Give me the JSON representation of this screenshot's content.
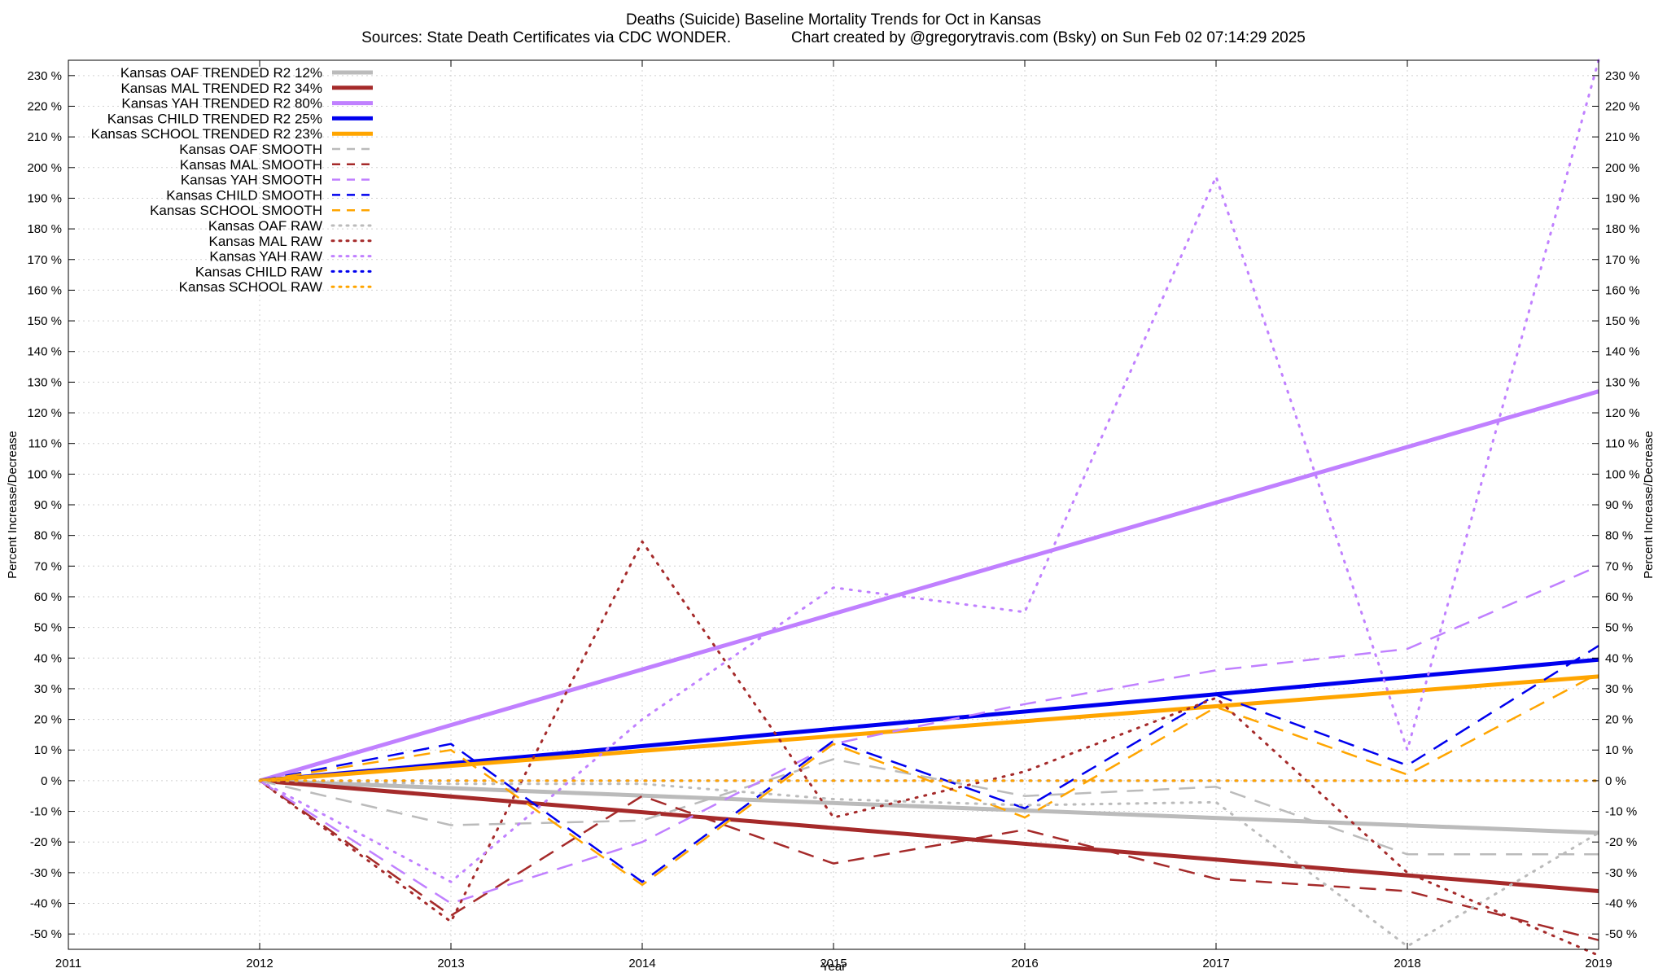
{
  "chart_data": {
    "type": "line",
    "title": "Deaths (Suicide)  Baseline Mortality Trends for Oct in Kansas",
    "subtitle": "Sources: State Death Certificates via CDC WONDER.              Chart created by @gregorytravis.com (Bsky) on Sun Feb 02 07:14:29 2025",
    "xlabel": "Year",
    "ylabel": "Percent Increase/Decrease",
    "xlim": [
      2011,
      2019
    ],
    "ylim": [
      -55,
      235
    ],
    "x_ticks": [
      "2011",
      "2012",
      "2013",
      "2014",
      "2015",
      "2016",
      "2017",
      "2018",
      "2019"
    ],
    "y_ticks": [
      "230 %",
      "220 %",
      "210 %",
      "200 %",
      "190 %",
      "180 %",
      "170 %",
      "160 %",
      "150 %",
      "140 %",
      "130 %",
      "120 %",
      "110 %",
      "100 %",
      "90 %",
      "80 %",
      "70 %",
      "60 %",
      "50 %",
      "40 %",
      "30 %",
      "20 %",
      "10 %",
      "0 %",
      "-10 %",
      "-20 %",
      "-30 %",
      "-40 %",
      "-50 %"
    ],
    "grid": true,
    "legend_position": "top-left",
    "series": [
      {
        "name": "Kansas OAF TRENDED R2  12%",
        "style": "solid",
        "color": "#bbbbbb",
        "x": [
          2012,
          2019
        ],
        "values": [
          0,
          -17
        ]
      },
      {
        "name": "Kansas MAL TRENDED R2  34%",
        "style": "solid",
        "color": "#a52a2a",
        "x": [
          2012,
          2019
        ],
        "values": [
          0,
          -36
        ]
      },
      {
        "name": "Kansas YAH TRENDED R2  80%",
        "style": "solid",
        "color": "#c080ff",
        "x": [
          2012,
          2019
        ],
        "values": [
          0,
          127
        ]
      },
      {
        "name": "Kansas CHILD TRENDED R2  25%",
        "style": "solid",
        "color": "#0000ee",
        "x": [
          2012,
          2019
        ],
        "values": [
          0,
          39.5
        ]
      },
      {
        "name": "Kansas SCHOOL TRENDED R2  23%",
        "style": "solid",
        "color": "#ffa500",
        "x": [
          2012,
          2019
        ],
        "values": [
          0,
          34
        ]
      },
      {
        "name": "Kansas OAF SMOOTH",
        "style": "dashed",
        "color": "#bbbbbb",
        "x": [
          2012,
          2013,
          2014,
          2015,
          2016,
          2017,
          2018,
          2019
        ],
        "values": [
          0,
          -14.5,
          -13,
          7,
          -5,
          -2,
          -24,
          -24
        ]
      },
      {
        "name": "Kansas MAL SMOOTH",
        "style": "dashed",
        "color": "#a52a2a",
        "x": [
          2012,
          2013,
          2014,
          2015,
          2016,
          2017,
          2018,
          2019
        ],
        "values": [
          0,
          -44,
          -5,
          -27,
          -16,
          -32,
          -36,
          -52
        ]
      },
      {
        "name": "Kansas YAH SMOOTH",
        "style": "dashed",
        "color": "#c080ff",
        "x": [
          2012,
          2013,
          2014,
          2015,
          2016,
          2017,
          2018,
          2019
        ],
        "values": [
          0,
          -40,
          -20,
          12,
          25,
          36,
          43,
          70
        ]
      },
      {
        "name": "Kansas CHILD SMOOTH",
        "style": "dashed",
        "color": "#0000ee",
        "x": [
          2012,
          2013,
          2014,
          2015,
          2016,
          2017,
          2018,
          2019
        ],
        "values": [
          0,
          12,
          -33,
          13,
          -9,
          28,
          5,
          44
        ]
      },
      {
        "name": "Kansas SCHOOL SMOOTH",
        "style": "dashed",
        "color": "#ffa500",
        "x": [
          2012,
          2013,
          2014,
          2015,
          2016,
          2017,
          2018,
          2019
        ],
        "values": [
          0,
          10,
          -34,
          12,
          -12,
          24,
          2,
          35
        ]
      },
      {
        "name": "Kansas OAF RAW",
        "style": "dotted",
        "color": "#bbbbbb",
        "x": [
          2012,
          2013,
          2014,
          2015,
          2016,
          2017,
          2018,
          2019
        ],
        "values": [
          0,
          -1,
          -1,
          -6,
          -8,
          -7,
          -54,
          -17
        ]
      },
      {
        "name": "Kansas MAL RAW",
        "style": "dotted",
        "color": "#a52a2a",
        "x": [
          2012,
          2013,
          2014,
          2015,
          2016,
          2017,
          2018,
          2019
        ],
        "values": [
          0,
          -46,
          78,
          -12,
          3,
          27,
          -30,
          -57
        ]
      },
      {
        "name": "Kansas YAH RAW",
        "style": "dotted",
        "color": "#c080ff",
        "x": [
          2012,
          2013,
          2014,
          2015,
          2016,
          2017,
          2018,
          2019
        ],
        "values": [
          0,
          -33,
          20,
          63,
          55,
          197,
          10,
          235
        ]
      },
      {
        "name": "Kansas CHILD RAW",
        "style": "dotted",
        "color": "#0000ee",
        "x": [
          2012,
          2013,
          2014,
          2015,
          2016,
          2017,
          2018,
          2019
        ],
        "values": [
          0,
          0,
          0,
          0,
          0,
          0,
          0,
          0
        ]
      },
      {
        "name": "Kansas SCHOOL RAW",
        "style": "dotted",
        "color": "#ffa500",
        "x": [
          2012,
          2013,
          2014,
          2015,
          2016,
          2017,
          2018,
          2019
        ],
        "values": [
          0,
          0,
          0,
          0,
          0,
          0,
          0,
          0
        ]
      }
    ]
  }
}
